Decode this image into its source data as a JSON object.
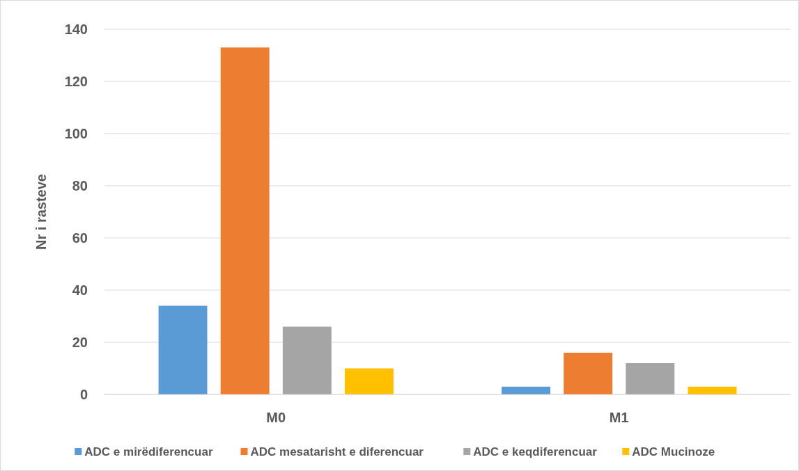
{
  "chart_data": {
    "type": "bar",
    "ylabel": "Nr i rasteve",
    "categories": [
      "M0",
      "M1"
    ],
    "series": [
      {
        "name": "ADC e mirëdiferencuar",
        "color": "#5b9bd5",
        "values": [
          34,
          3
        ]
      },
      {
        "name": "ADC mesatarisht e diferencuar",
        "color": "#ed7d31",
        "values": [
          133,
          16
        ]
      },
      {
        "name": "ADC e keqdiferencuar",
        "color": "#a5a5a5",
        "values": [
          26,
          12
        ]
      },
      {
        "name": "ADC Mucinoze",
        "color": "#ffc000",
        "values": [
          10,
          3
        ]
      }
    ],
    "ylim": [
      0,
      140
    ],
    "yticks": [
      0,
      20,
      40,
      60,
      80,
      100,
      120,
      140
    ],
    "grid": "y",
    "legend": "bottom"
  }
}
